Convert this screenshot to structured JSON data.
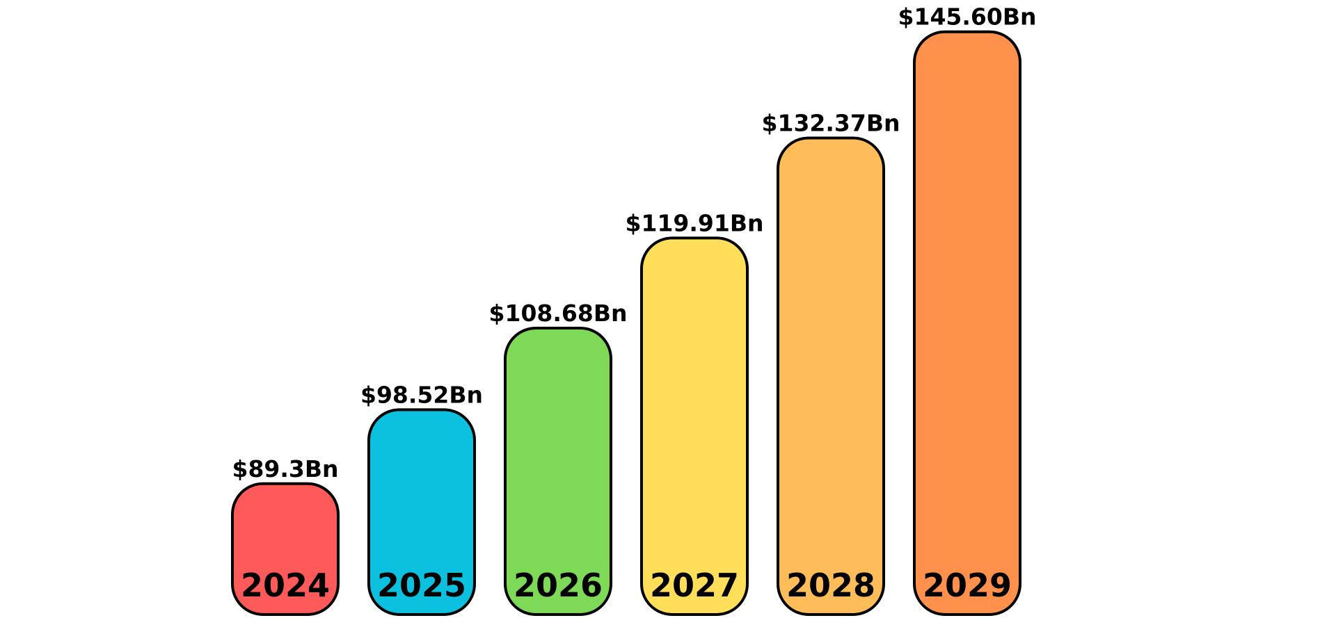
{
  "chart_data": {
    "type": "bar",
    "categories": [
      "2024",
      "2025",
      "2026",
      "2027",
      "2028",
      "2029"
    ],
    "values": [
      89.3,
      98.52,
      108.68,
      119.91,
      132.37,
      145.6
    ],
    "value_labels": [
      "$89.3Bn",
      "$98.52Bn",
      "$108.68Bn",
      "$119.91Bn",
      "$132.37Bn",
      "$145.60Bn"
    ],
    "colors": [
      "#ff5a5a",
      "#0cc0df",
      "#7ed957",
      "#ffde59",
      "#ffbd59",
      "#ff914d"
    ],
    "ylim": [
      73,
      148
    ]
  }
}
